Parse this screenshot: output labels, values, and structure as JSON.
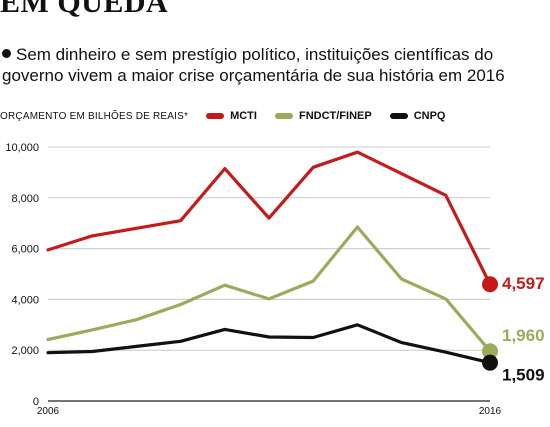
{
  "headline": "EM QUEDA",
  "intro": "Sem dinheiro e sem prestígio político, instituições científicas do governo vivem a maior crise orçamentária de sua história em 2016",
  "unit_label": "ORÇAMENTO EM BILHÕES DE REAIS*",
  "chart_data": {
    "type": "line",
    "title": "",
    "ylabel": "ORÇAMENTO EM BILHÕES DE REAIS*",
    "xlabel": "",
    "x": [
      2006,
      2007,
      2008,
      2009,
      2010,
      2011,
      2012,
      2013,
      2014,
      2015,
      2016
    ],
    "x_tick_labels": [
      "2006",
      "2016"
    ],
    "ylim": [
      0,
      10000
    ],
    "y_ticks": [
      0,
      2000,
      4000,
      6000,
      8000,
      10000
    ],
    "y_tick_labels": [
      "0",
      "2,000",
      "4,000",
      "6,000",
      "8,000",
      "10,000"
    ],
    "grid": true,
    "legend_position": "top",
    "series": [
      {
        "name": "MCTI",
        "color": "#c41a1a",
        "values": [
          5950,
          6500,
          6800,
          7100,
          9150,
          7200,
          9200,
          9800,
          8950,
          8100,
          4597
        ],
        "end_label": "4,597"
      },
      {
        "name": "FNDCT/FINEP",
        "color": "#9aab5c",
        "values": [
          2420,
          2800,
          3200,
          3800,
          4560,
          4020,
          4720,
          6850,
          4800,
          4020,
          1960
        ],
        "end_label": "1,960"
      },
      {
        "name": "CNPQ",
        "color": "#111111",
        "values": [
          1900,
          1950,
          2150,
          2350,
          2820,
          2520,
          2500,
          3000,
          2300,
          1920,
          1509
        ],
        "end_label": "1,509"
      }
    ]
  }
}
